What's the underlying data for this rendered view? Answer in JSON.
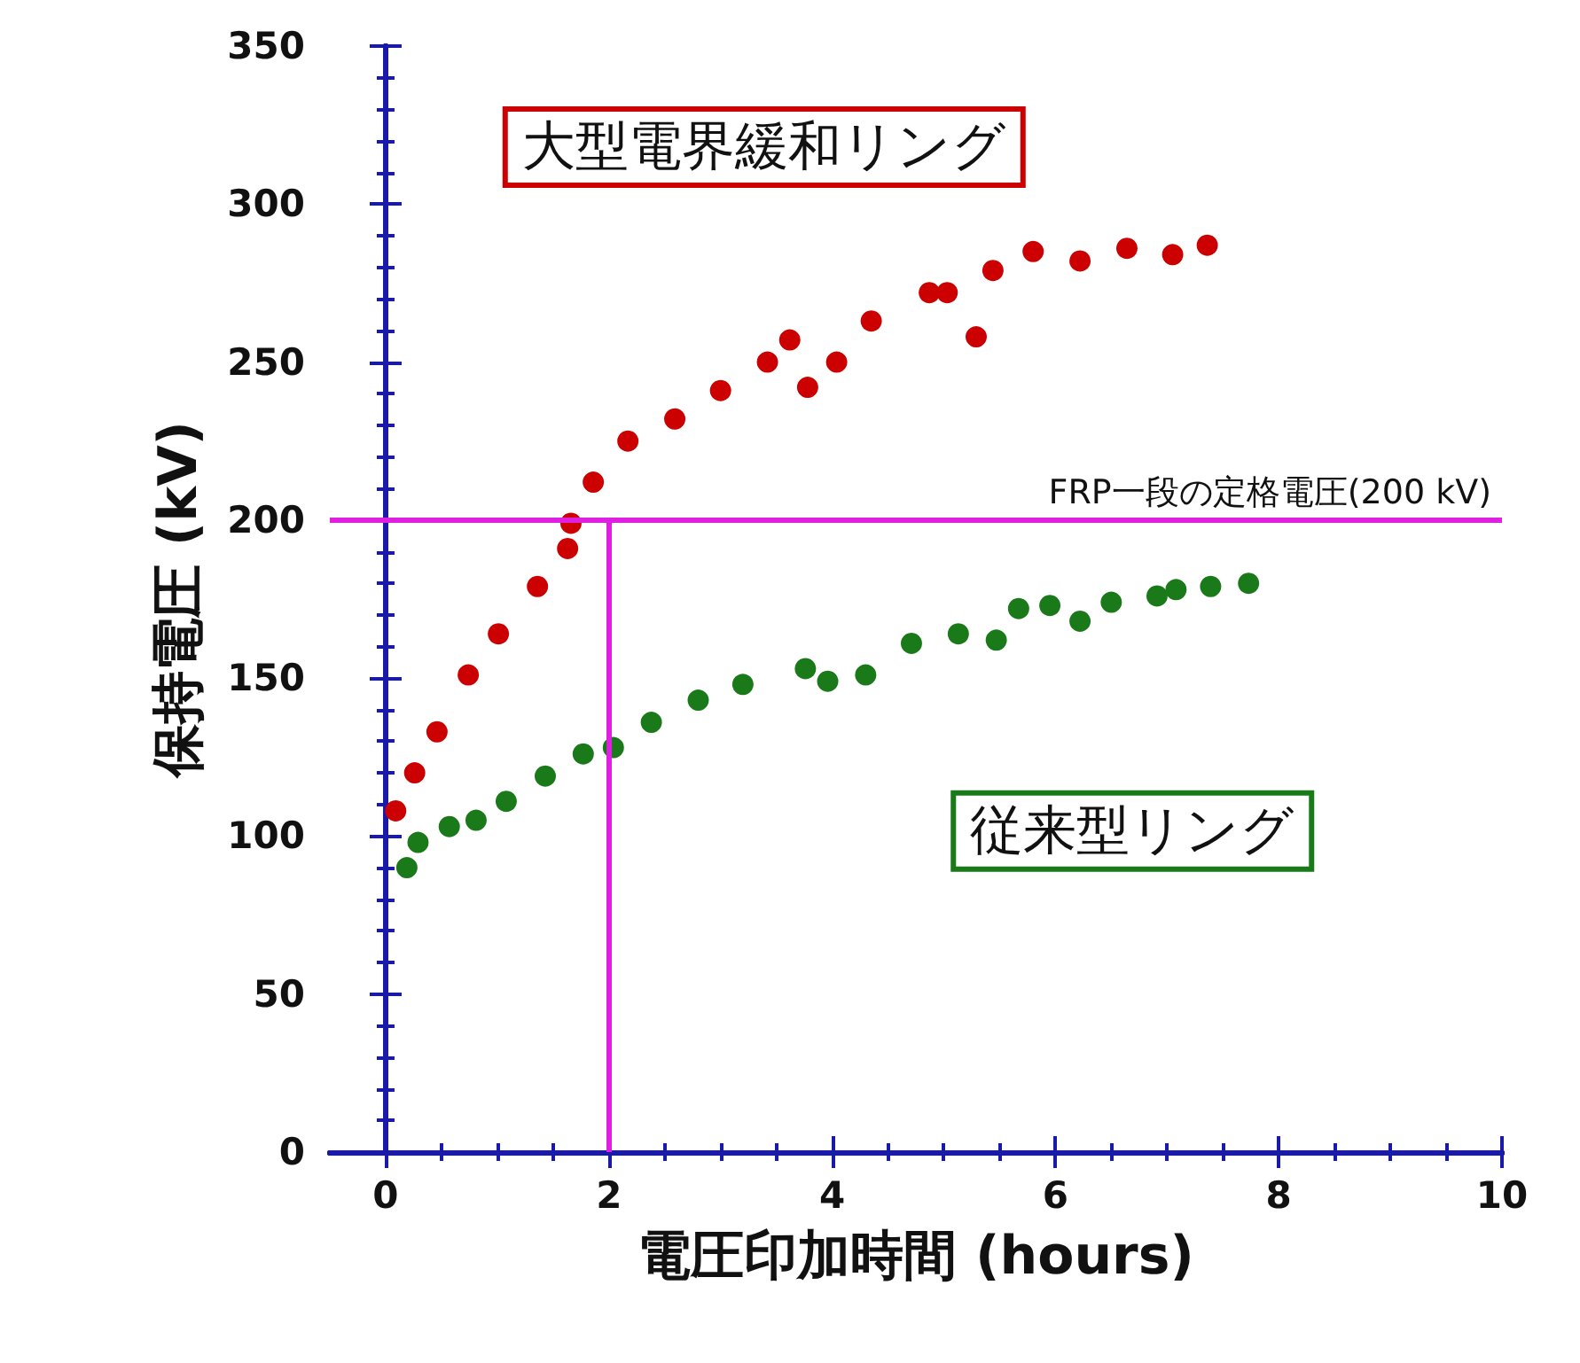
{
  "chart_data": {
    "type": "scatter",
    "xlabel": "電圧印加時間 (hours)",
    "ylabel": "保持電圧 (kV)",
    "xlim": [
      -0.5,
      10
    ],
    "xticks": [
      0,
      2,
      4,
      6,
      8,
      10
    ],
    "ylim": [
      0,
      350
    ],
    "yticks": [
      0,
      50,
      100,
      150,
      200,
      250,
      300,
      350
    ],
    "grid": false,
    "marker": "circle",
    "series": [
      {
        "name": "大型電界緩和リング",
        "color": "#cc0000",
        "x": [
          0.09,
          0.26,
          0.46,
          0.74,
          1.01,
          1.36,
          1.63,
          1.66,
          1.86,
          2.17,
          2.59,
          3.0,
          3.42,
          3.62,
          3.78,
          4.04,
          4.35,
          4.87,
          5.03,
          5.29,
          5.44,
          5.8,
          6.22,
          6.64,
          7.05,
          7.36
        ],
        "values": [
          108,
          120,
          133,
          151,
          164,
          179,
          191,
          199,
          212,
          225,
          232,
          241,
          250,
          257,
          242,
          250,
          263,
          272,
          272,
          258,
          279,
          285,
          282,
          286,
          284,
          287
        ]
      },
      {
        "name": "従来型リング",
        "color": "#1a7a1a",
        "x": [
          0.19,
          0.29,
          0.57,
          0.81,
          1.08,
          1.43,
          1.77,
          2.04,
          2.38,
          2.8,
          3.2,
          3.76,
          3.96,
          4.3,
          4.71,
          5.13,
          5.47,
          5.67,
          5.95,
          6.22,
          6.5,
          6.91,
          7.08,
          7.39,
          7.73
        ],
        "values": [
          90,
          98,
          103,
          105,
          111,
          119,
          126,
          128,
          136,
          143,
          148,
          153,
          149,
          151,
          161,
          164,
          162,
          172,
          173,
          168,
          174,
          176,
          178,
          179,
          180
        ]
      }
    ],
    "ref_lines": [
      {
        "axis": "y",
        "value": 200,
        "label": "FRP一段の定格電圧(200 kV)",
        "color": "#e020e0"
      },
      {
        "axis": "x",
        "value": 2,
        "label": null,
        "color": "#e020e0"
      }
    ]
  }
}
